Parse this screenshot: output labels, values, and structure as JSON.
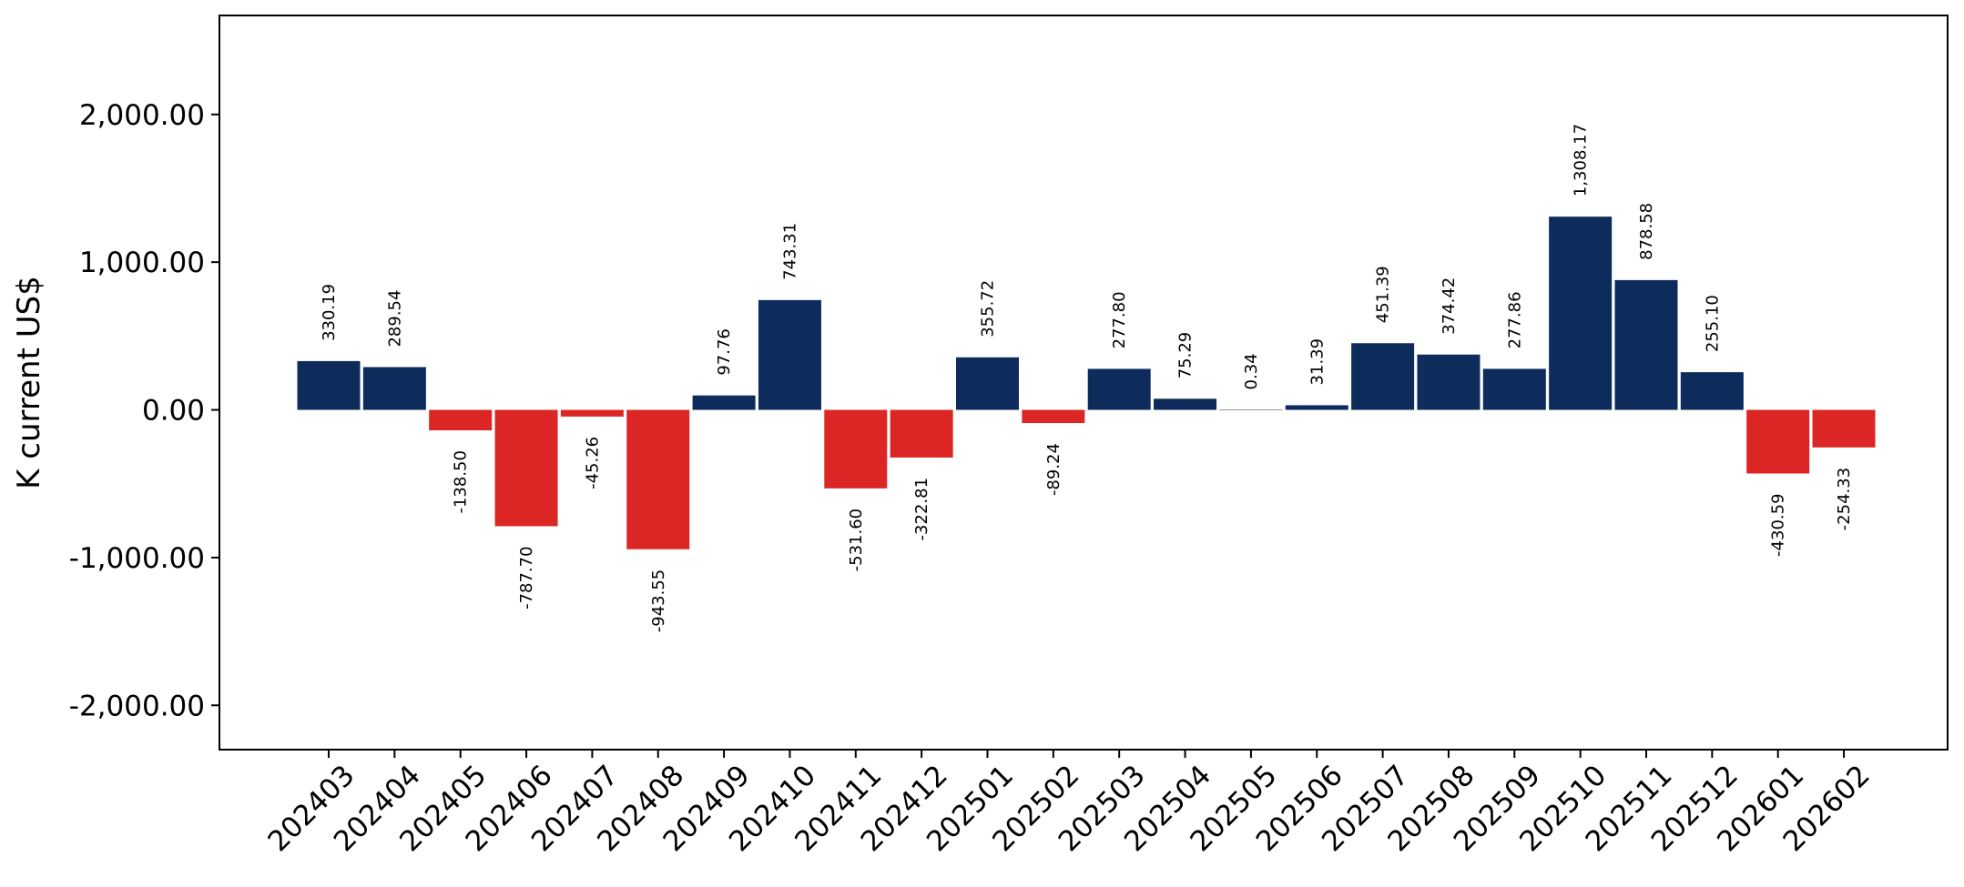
{
  "chart_data": {
    "type": "bar",
    "ylabel": "K current US$",
    "ylim": [
      -2300,
      2670
    ],
    "yticks": [
      -2000,
      -1000,
      0,
      1000,
      2000
    ],
    "ytick_labels": [
      "-2,000.00",
      "-1,000.00",
      "0.00",
      "1,000.00",
      "2,000.00"
    ],
    "grid": false,
    "legend": "none",
    "colors": {
      "positive": "#0d2c5c",
      "negative": "#dc2626"
    },
    "categories": [
      "202403",
      "202404",
      "202405",
      "202406",
      "202407",
      "202408",
      "202409",
      "202410",
      "202411",
      "202412",
      "202501",
      "202502",
      "202503",
      "202504",
      "202505",
      "202506",
      "202507",
      "202508",
      "202509",
      "202510",
      "202511",
      "202512",
      "202601",
      "202602"
    ],
    "values": [
      330.19,
      289.54,
      -138.5,
      -787.7,
      -45.26,
      -943.55,
      97.76,
      743.31,
      -531.6,
      -322.81,
      355.72,
      -89.24,
      277.8,
      75.29,
      0.34,
      31.39,
      451.39,
      374.42,
      277.86,
      1308.17,
      878.58,
      255.1,
      -430.59,
      -254.33
    ],
    "value_labels": [
      "330.19",
      "289.54",
      "-138.50",
      "-787.70",
      "-45.26",
      "-943.55",
      "97.76",
      "743.31",
      "-531.60",
      "-322.81",
      "355.72",
      "-89.24",
      "277.80",
      "75.29",
      "0.34",
      "31.39",
      "451.39",
      "374.42",
      "277.86",
      "1,308.17",
      "878.58",
      "255.10",
      "-430.59",
      "-254.33"
    ]
  }
}
